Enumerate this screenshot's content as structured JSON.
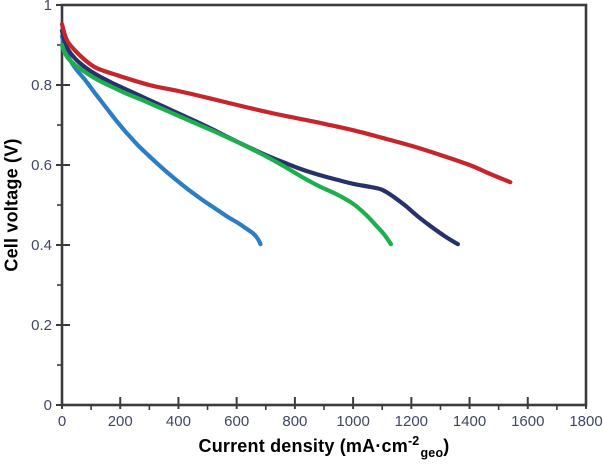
{
  "figure": {
    "background": "#ffffff",
    "axis_color": "#3c3c3c",
    "tick_label_color": "#3f4763",
    "axis_title_color": "#000000"
  },
  "chart_data": {
    "type": "line",
    "title": "",
    "xlabel": {
      "pre": "Current density (mA·cm",
      "sup": "-2",
      "sub": "geo",
      "post": ")",
      "full": "Current density (mA·cm-2 geo)"
    },
    "ylabel": "Cell voltage (V)",
    "xlim": [
      0,
      1800
    ],
    "ylim": [
      0,
      1
    ],
    "grid": false,
    "legend": "none",
    "xticks": {
      "values": [
        0,
        200,
        400,
        600,
        800,
        1000,
        1200,
        1400,
        1600,
        1800
      ],
      "labels": [
        "0",
        "200",
        "400",
        "600",
        "800",
        "1000",
        "1200",
        "1400",
        "1600",
        "1800"
      ],
      "minor_step": 100
    },
    "yticks": {
      "values": [
        0,
        0.2,
        0.4,
        0.6,
        0.8,
        1
      ],
      "labels": [
        "0",
        "0.2",
        "0.4",
        "0.6",
        "0.8",
        "1"
      ],
      "minor_step": 0.1
    },
    "series": [
      {
        "name": "lightblue-curve",
        "color": "#2b7ec5",
        "points": [
          [
            0,
            0.922
          ],
          [
            10,
            0.893
          ],
          [
            25,
            0.866
          ],
          [
            50,
            0.838
          ],
          [
            80,
            0.812
          ],
          [
            115,
            0.778
          ],
          [
            150,
            0.745
          ],
          [
            185,
            0.712
          ],
          [
            220,
            0.682
          ],
          [
            260,
            0.65
          ],
          [
            300,
            0.622
          ],
          [
            345,
            0.592
          ],
          [
            390,
            0.564
          ],
          [
            435,
            0.538
          ],
          [
            480,
            0.514
          ],
          [
            525,
            0.492
          ],
          [
            570,
            0.47
          ],
          [
            605,
            0.455
          ],
          [
            635,
            0.44
          ],
          [
            658,
            0.428
          ],
          [
            672,
            0.416
          ],
          [
            682,
            0.402
          ]
        ]
      },
      {
        "name": "navy-curve",
        "color": "#27316b",
        "points": [
          [
            0,
            0.936
          ],
          [
            8,
            0.912
          ],
          [
            20,
            0.89
          ],
          [
            45,
            0.866
          ],
          [
            80,
            0.844
          ],
          [
            120,
            0.825
          ],
          [
            170,
            0.806
          ],
          [
            220,
            0.789
          ],
          [
            280,
            0.769
          ],
          [
            340,
            0.749
          ],
          [
            400,
            0.729
          ],
          [
            460,
            0.709
          ],
          [
            520,
            0.688
          ],
          [
            580,
            0.666
          ],
          [
            640,
            0.645
          ],
          [
            700,
            0.625
          ],
          [
            760,
            0.607
          ],
          [
            820,
            0.59
          ],
          [
            880,
            0.576
          ],
          [
            940,
            0.564
          ],
          [
            1000,
            0.553
          ],
          [
            1060,
            0.545
          ],
          [
            1100,
            0.538
          ],
          [
            1140,
            0.52
          ],
          [
            1180,
            0.498
          ],
          [
            1225,
            0.47
          ],
          [
            1270,
            0.445
          ],
          [
            1315,
            0.422
          ],
          [
            1360,
            0.402
          ]
        ]
      },
      {
        "name": "green-curve",
        "color": "#1fae4e",
        "points": [
          [
            0,
            0.9
          ],
          [
            8,
            0.884
          ],
          [
            20,
            0.868
          ],
          [
            45,
            0.85
          ],
          [
            80,
            0.832
          ],
          [
            120,
            0.814
          ],
          [
            170,
            0.796
          ],
          [
            220,
            0.779
          ],
          [
            280,
            0.761
          ],
          [
            340,
            0.742
          ],
          [
            400,
            0.723
          ],
          [
            460,
            0.704
          ],
          [
            520,
            0.685
          ],
          [
            580,
            0.665
          ],
          [
            640,
            0.644
          ],
          [
            700,
            0.622
          ],
          [
            760,
            0.598
          ],
          [
            820,
            0.572
          ],
          [
            880,
            0.548
          ],
          [
            940,
            0.528
          ],
          [
            1000,
            0.503
          ],
          [
            1045,
            0.475
          ],
          [
            1080,
            0.448
          ],
          [
            1108,
            0.425
          ],
          [
            1130,
            0.402
          ]
        ]
      },
      {
        "name": "red-curve",
        "color": "#c5262c",
        "points": [
          [
            0,
            0.952
          ],
          [
            8,
            0.93
          ],
          [
            20,
            0.908
          ],
          [
            45,
            0.886
          ],
          [
            80,
            0.862
          ],
          [
            120,
            0.842
          ],
          [
            200,
            0.822
          ],
          [
            300,
            0.8
          ],
          [
            400,
            0.785
          ],
          [
            500,
            0.768
          ],
          [
            630,
            0.745
          ],
          [
            720,
            0.73
          ],
          [
            800,
            0.718
          ],
          [
            900,
            0.703
          ],
          [
            1000,
            0.687
          ],
          [
            1100,
            0.668
          ],
          [
            1200,
            0.648
          ],
          [
            1300,
            0.625
          ],
          [
            1400,
            0.6
          ],
          [
            1470,
            0.578
          ],
          [
            1540,
            0.557
          ]
        ]
      }
    ]
  }
}
